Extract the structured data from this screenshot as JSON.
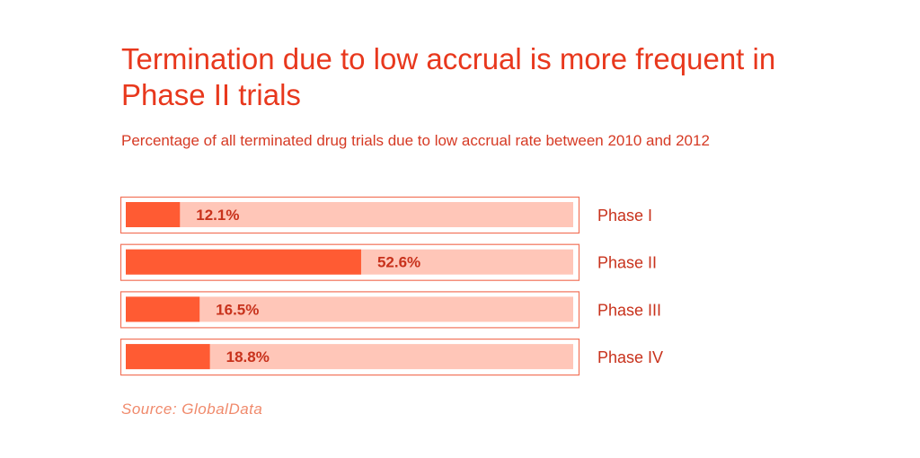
{
  "header": {
    "title": "Termination due to low accrual is more frequent in Phase II trials",
    "subtitle": "Percentage of all terminated drug trials due to low accrual rate between 2010 and 2012"
  },
  "footer": {
    "source": "Source:  GlobalData"
  },
  "colors": {
    "accent": "#e8381d",
    "bar_fill": "#ff5b33",
    "bar_track": "#ffc6b8",
    "frame": "#f2735a",
    "label": "#c8321c"
  },
  "chart_data": {
    "type": "bar",
    "orientation": "horizontal",
    "categories": [
      "Phase I",
      "Phase II",
      "Phase III",
      "Phase IV"
    ],
    "values": [
      12.1,
      52.6,
      16.5,
      18.8
    ],
    "value_labels": [
      "12.1%",
      "52.6%",
      "16.5%",
      "18.8%"
    ],
    "xlim": [
      0,
      100
    ],
    "grid": false,
    "legend": "none"
  }
}
